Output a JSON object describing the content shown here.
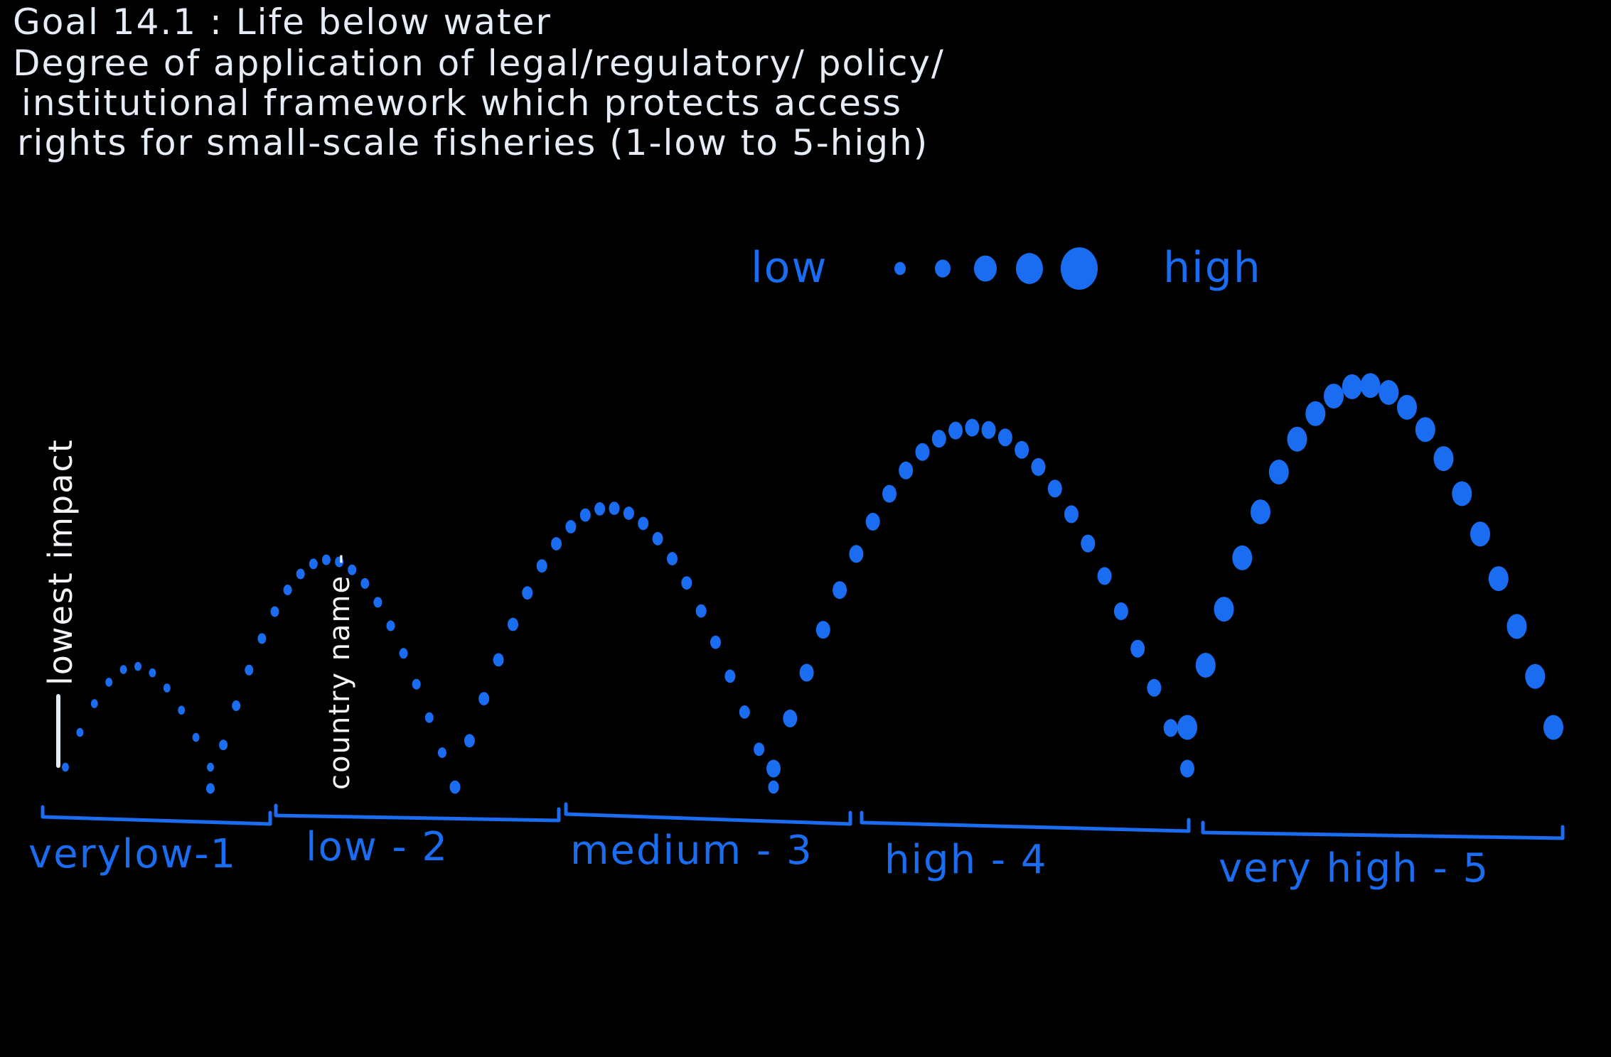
{
  "title_lines": [
    "Goal 14.1 : Life below water",
    "Degree of application of legal/regulatory/ policy/",
    "institutional framework which protects access",
    "rights for small-scale fisheries (1-low to 5-high)"
  ],
  "legend": {
    "low_label": "low",
    "high_label": "high",
    "dot_levels": [
      1,
      2,
      3,
      4,
      5
    ]
  },
  "annotations": {
    "lowest_impact": "lowest impact",
    "country_name": "country name -"
  },
  "buckets": [
    {
      "label": "verylow-1",
      "level": 1
    },
    {
      "label": "low - 2",
      "level": 2
    },
    {
      "label": "medium - 3",
      "level": 3
    },
    {
      "label": "high - 4",
      "level": 4
    },
    {
      "label": "very high - 5",
      "level": 5
    }
  ],
  "colors": {
    "background": "#000000",
    "title_text": "#e6ecf5",
    "accent_blue": "#1a6cf0"
  }
}
